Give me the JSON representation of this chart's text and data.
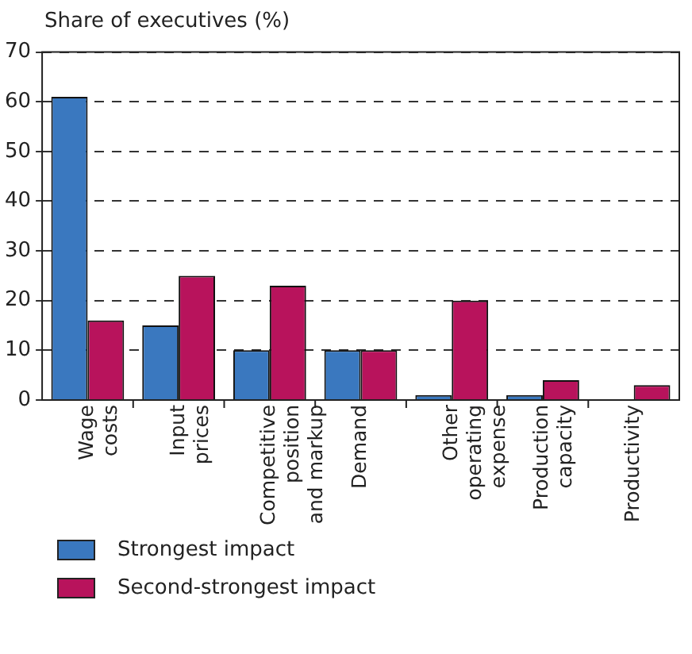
{
  "chart_data": {
    "type": "bar",
    "ylabel": "Share of executives (%)",
    "categories": [
      "Wage costs",
      "Input prices",
      "Competitive position and markup",
      "Demand",
      "Other operating expense",
      "Production capacity",
      "Productivity"
    ],
    "series": [
      {
        "name": "Strongest impact",
        "color": "#3a78bf",
        "values": [
          61,
          15,
          10,
          10,
          1,
          1,
          0
        ]
      },
      {
        "name": "Second-strongest impact",
        "color": "#b8135c",
        "values": [
          16,
          25,
          23,
          10,
          20,
          4,
          3
        ]
      }
    ],
    "ylim": [
      0,
      70
    ],
    "yticks": [
      0,
      10,
      20,
      30,
      40,
      50,
      60,
      70
    ],
    "grid": "y",
    "legend": "bottom left"
  }
}
